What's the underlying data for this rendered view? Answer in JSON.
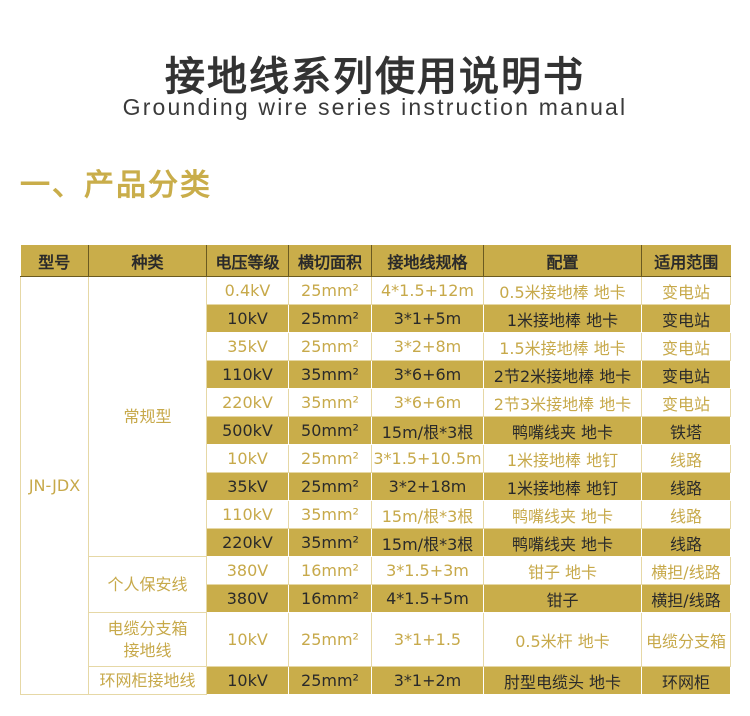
{
  "title": "接地线系列使用说明书",
  "subtitle": "Grounding wire series instruction manual",
  "section": "一、产品分类",
  "colors": {
    "accent": "#c9ad4a",
    "dark_text": "#2a2a2a"
  },
  "table": {
    "headers": [
      "型号",
      "种类",
      "电压等级",
      "横切面积",
      "接地线规格",
      "配置",
      "适用范围"
    ],
    "model": "JN-JDX",
    "groups": [
      {
        "type": "常规型",
        "rows": [
          [
            "0.4kV",
            "25mm²",
            "4*1.5+12m",
            "0.5米接地棒 地卡",
            "变电站"
          ],
          [
            "10kV",
            "25mm²",
            "3*1+5m",
            "1米接地棒 地卡",
            "变电站"
          ],
          [
            "35kV",
            "25mm²",
            "3*2+8m",
            "1.5米接地棒 地卡",
            "变电站"
          ],
          [
            "110kV",
            "35mm²",
            "3*6+6m",
            "2节2米接地棒 地卡",
            "变电站"
          ],
          [
            "220kV",
            "35mm²",
            "3*6+6m",
            "2节3米接地棒 地卡",
            "变电站"
          ],
          [
            "500kV",
            "50mm²",
            "15m/根*3根",
            "鸭嘴线夹 地卡",
            "铁塔"
          ],
          [
            "10kV",
            "25mm²",
            "3*1.5+10.5m",
            "1米接地棒 地钉",
            "线路"
          ],
          [
            "35kV",
            "25mm²",
            "3*2+18m",
            "1米接地棒 地钉",
            "线路"
          ],
          [
            "110kV",
            "35mm²",
            "15m/根*3根",
            "鸭嘴线夹 地卡",
            "线路"
          ],
          [
            "220kV",
            "35mm²",
            "15m/根*3根",
            "鸭嘴线夹 地卡",
            "线路"
          ]
        ]
      },
      {
        "type": "个人保安线",
        "rows": [
          [
            "380V",
            "16mm²",
            "3*1.5+3m",
            "钳子 地卡",
            "横担/线路"
          ],
          [
            "380V",
            "16mm²",
            "4*1.5+5m",
            "钳子",
            "横担/线路"
          ]
        ]
      },
      {
        "type": "电缆分支箱接地线",
        "rows": [
          [
            "10kV",
            "25mm²",
            "3*1+1.5",
            "0.5米杆 地卡",
            "电缆分支箱"
          ]
        ]
      },
      {
        "type": "环网柜接地线",
        "rows": [
          [
            "10kV",
            "25mm²",
            "3*1+2m",
            "肘型电缆头 地卡",
            "环网柜"
          ]
        ]
      }
    ]
  }
}
